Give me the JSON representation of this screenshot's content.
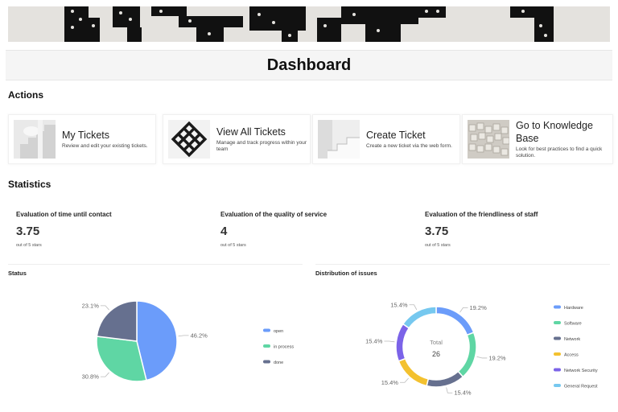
{
  "header": {
    "title": "Dashboard"
  },
  "sections": {
    "actions": "Actions",
    "statistics": "Statistics"
  },
  "actions": [
    {
      "title": "My Tickets",
      "description": "Review and edit your existing tickets.",
      "thumb": "stairs-image"
    },
    {
      "title": "View All Tickets",
      "description": "Manage and track progress within your team",
      "thumb": "lattice-image"
    },
    {
      "title": "Create Ticket",
      "description": "Create a new ticket via the web form.",
      "thumb": "steps-image"
    },
    {
      "title": "Go to Knowledge Base",
      "description": "Look for best practices to find a quick solution.",
      "thumb": "blocks-image"
    }
  ],
  "stats": [
    {
      "label": "Evaluation of time until contact",
      "value": "3.75",
      "sub": "out of 5 stars"
    },
    {
      "label": "Evaluation of the quality of service",
      "value": "4",
      "sub": "out of 5 stars"
    },
    {
      "label": "Evaluation of the friendliness of staff",
      "value": "3.75",
      "sub": "out of 5 stars"
    }
  ],
  "charts": {
    "status_title": "Status",
    "distribution_title": "Distribution of issues",
    "total_label": "Total",
    "total_value": "26"
  },
  "chart_data": [
    {
      "type": "pie",
      "title": "Status",
      "categories": [
        "open",
        "in process",
        "done"
      ],
      "values": [
        46.2,
        30.8,
        23.1
      ],
      "labels": [
        "46.2%",
        "30.8%",
        "23.1%"
      ],
      "colors": [
        "#6b9cfa",
        "#5fd6a4",
        "#66708f"
      ],
      "legend": "right"
    },
    {
      "type": "pie",
      "title": "Distribution of issues",
      "categories": [
        "Hardware",
        "Software",
        "Network",
        "Access",
        "Network Security",
        "General Request"
      ],
      "values": [
        19.2,
        19.2,
        15.4,
        15.4,
        15.4,
        15.4
      ],
      "labels": [
        "19.2%",
        "19.2%",
        "15.4%",
        "15.4%",
        "15.4%",
        "15.4%"
      ],
      "colors": [
        "#6b9cfa",
        "#5fd6a4",
        "#66708f",
        "#f3c12f",
        "#7b63e8",
        "#76c8ef"
      ],
      "legend": "right",
      "total": 26
    }
  ]
}
